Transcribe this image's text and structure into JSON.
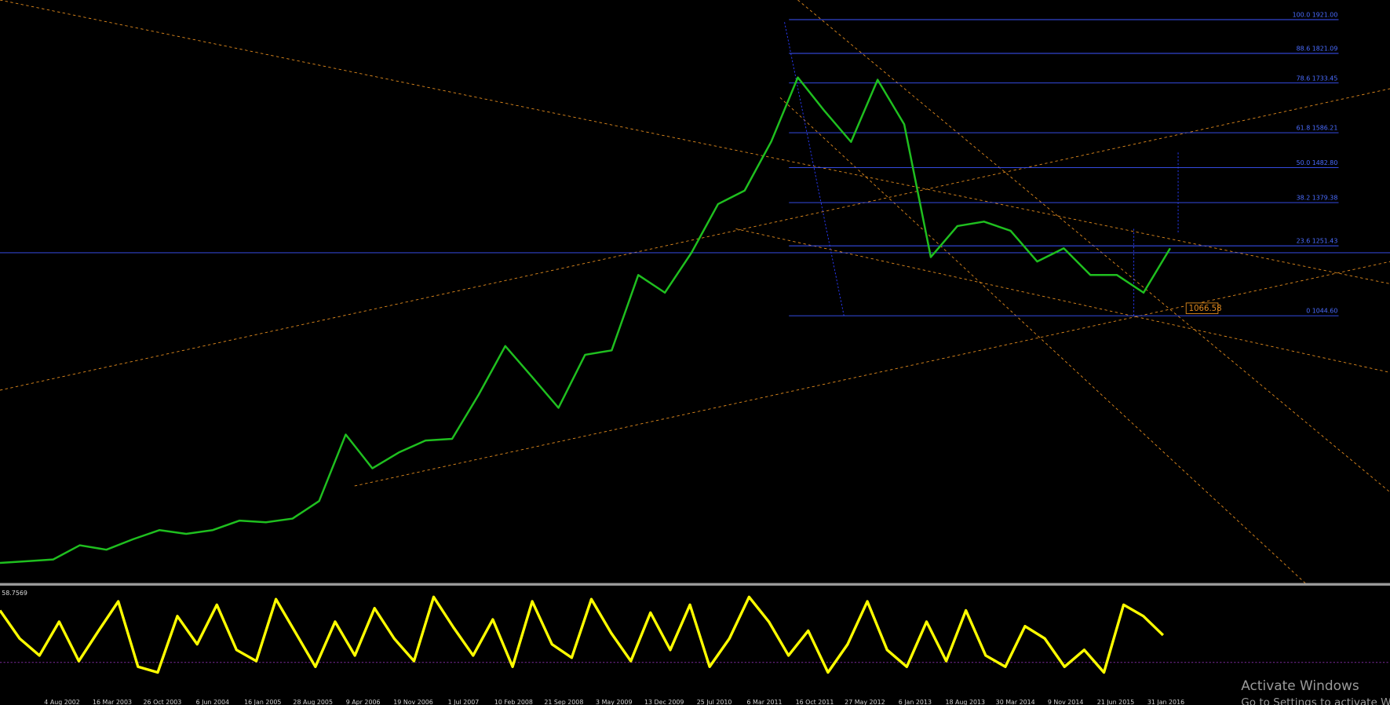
{
  "chart": {
    "price_range": [
      252,
      1979
    ],
    "fib_levels": [
      {
        "label": "100.0 1921.00",
        "value": 1921
      },
      {
        "label": "88.6 1821.09",
        "value": 1821.09
      },
      {
        "label": "78.6 1733.45",
        "value": 1733.45
      },
      {
        "label": "61.8 1586.21",
        "value": 1586.21
      },
      {
        "label": "50.0 1482.80",
        "value": 1482.8
      },
      {
        "label": "38.2 1379.38",
        "value": 1379.38
      },
      {
        "label": "23.6 1251.43",
        "value": 1251.43
      },
      {
        "label": "0 1044.60",
        "value": 1044.6
      }
    ],
    "price_label": {
      "label": "1066.58",
      "value": 1066.58
    },
    "prices": [
      313,
      318,
      323,
      365,
      352,
      383,
      410,
      399,
      410,
      438,
      433,
      444,
      496,
      693,
      593,
      640,
      675,
      680,
      811,
      955,
      864,
      772,
      929,
      942,
      1165,
      1113,
      1231,
      1375,
      1415,
      1560,
      1750,
      1651,
      1559,
      1743,
      1611,
      1218,
      1310,
      1323,
      1296,
      1205,
      1244,
      1165,
      1165,
      1113,
      1244
    ],
    "oscillator": {
      "label": "58.7569",
      "range": [
        0,
        100
      ],
      "values": [
        80,
        55,
        40,
        70,
        35,
        62,
        88,
        30,
        25,
        75,
        50,
        85,
        45,
        35,
        90,
        60,
        30,
        70,
        40,
        82,
        55,
        35,
        92,
        65,
        40,
        72,
        30,
        88,
        50,
        38,
        90,
        60,
        35,
        78,
        45,
        85,
        30,
        55,
        92,
        70,
        40,
        62,
        25,
        50,
        88,
        45,
        30,
        70,
        35,
        80,
        40,
        30,
        66,
        55,
        30,
        45,
        25,
        85,
        75,
        58
      ]
    },
    "dates": [
      "4 Aug 2002",
      "16 Mar 2003",
      "26 Oct 2003",
      "6 Jun 2004",
      "16 Jan 2005",
      "28 Aug 2005",
      "9 Apr 2006",
      "19 Nov 2006",
      "1 Jul 2007",
      "10 Feb 2008",
      "21 Sep 2008",
      "3 May 2009",
      "13 Dec 2009",
      "25 Jul 2010",
      "6 Mar 2011",
      "16 Oct 2011",
      "27 May 2012",
      "6 Jan 2013",
      "18 Aug 2013",
      "30 Mar 2014",
      "9 Nov 2014",
      "21 Jun 2015",
      "31 Jan 2016"
    ]
  },
  "watermark": {
    "title": "Activate Windows",
    "subtitle": "Go to Settings to activate Windows."
  }
}
